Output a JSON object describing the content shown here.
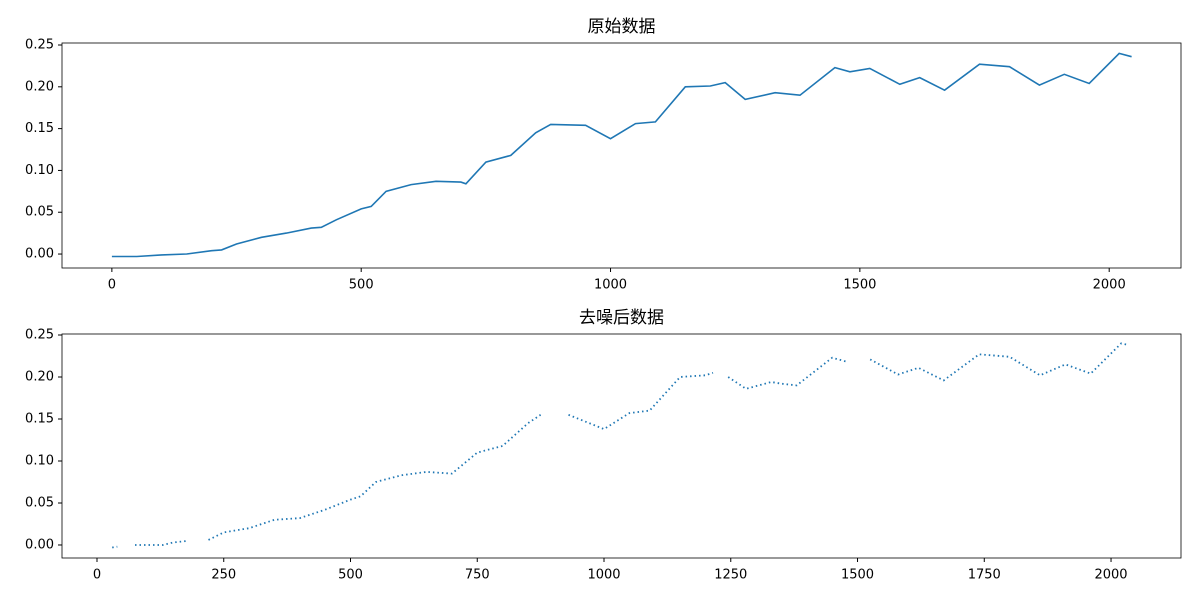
{
  "chart_data": [
    {
      "type": "line",
      "title": "原始数据",
      "color": "#1f77b4",
      "linestyle": "solid",
      "x": [
        0,
        50,
        100,
        150,
        200,
        220,
        250,
        300,
        350,
        400,
        420,
        450,
        500,
        520,
        550,
        600,
        650,
        700,
        710,
        750,
        800,
        850,
        880,
        950,
        1000,
        1050,
        1090,
        1150,
        1200,
        1230,
        1270,
        1330,
        1380,
        1450,
        1480,
        1520,
        1580,
        1620,
        1670,
        1740,
        1800,
        1860,
        1910,
        1960,
        2020,
        2045
      ],
      "values": [
        -0.003,
        -0.003,
        -0.001,
        0.0,
        0.004,
        0.005,
        0.012,
        0.02,
        0.025,
        0.031,
        0.032,
        0.041,
        0.054,
        0.057,
        0.075,
        0.083,
        0.087,
        0.086,
        0.084,
        0.11,
        0.118,
        0.145,
        0.155,
        0.154,
        0.138,
        0.156,
        0.158,
        0.2,
        0.201,
        0.205,
        0.185,
        0.193,
        0.19,
        0.223,
        0.218,
        0.222,
        0.203,
        0.211,
        0.196,
        0.227,
        0.224,
        0.202,
        0.215,
        0.204,
        0.24,
        0.236
      ],
      "xlim": [
        -100,
        2144
      ],
      "xticks": [
        0,
        500,
        1000,
        1500,
        2000
      ],
      "ylim": [
        -0.0167,
        0.2524
      ],
      "yticks": [
        {
          "value": 0,
          "label": "0.00"
        },
        {
          "value": 0.05,
          "label": "0.05"
        },
        {
          "value": 0.1,
          "label": "0.10"
        },
        {
          "value": 0.15,
          "label": "0.15"
        },
        {
          "value": 0.2,
          "label": "0.20"
        },
        {
          "value": 0.25,
          "label": "0.25"
        }
      ]
    },
    {
      "type": "line",
      "title": "去噪后数据",
      "color": "#1f77b4",
      "linestyle": "dotted",
      "x": [
        30,
        40,
        60,
        75,
        100,
        130,
        150,
        180,
        200,
        220,
        250,
        300,
        350,
        400,
        450,
        500,
        520,
        550,
        600,
        650,
        700,
        750,
        800,
        850,
        875,
        900,
        930,
        1000,
        1050,
        1090,
        1150,
        1200,
        1215,
        1230,
        1245,
        1280,
        1330,
        1350,
        1380,
        1450,
        1480,
        1500,
        1525,
        1580,
        1620,
        1670,
        1740,
        1800,
        1860,
        1910,
        1960,
        2020,
        2035
      ],
      "values": [
        -0.003,
        -0.002,
        null,
        0.0,
        0.0,
        0.0,
        0.003,
        0.005,
        null,
        0.006,
        0.015,
        0.02,
        0.03,
        0.032,
        0.042,
        0.054,
        0.058,
        0.075,
        0.083,
        0.087,
        0.085,
        0.11,
        0.118,
        0.145,
        0.155,
        null,
        0.155,
        0.138,
        0.157,
        0.16,
        0.2,
        0.202,
        0.205,
        null,
        0.2,
        0.186,
        0.194,
        0.192,
        0.19,
        0.223,
        0.218,
        null,
        0.221,
        0.203,
        0.211,
        0.196,
        0.227,
        0.224,
        0.202,
        0.215,
        0.204,
        0.24,
        0.238
      ],
      "xlim": [
        -69,
        2138
      ],
      "xticks": [
        0,
        250,
        500,
        750,
        1000,
        1250,
        1500,
        1750,
        2000
      ],
      "ylim": [
        -0.0155,
        0.2512
      ],
      "yticks": [
        {
          "value": 0,
          "label": "0.00"
        },
        {
          "value": 0.05,
          "label": "0.05"
        },
        {
          "value": 0.1,
          "label": "0.10"
        },
        {
          "value": 0.15,
          "label": "0.15"
        },
        {
          "value": 0.2,
          "label": "0.20"
        },
        {
          "value": 0.25,
          "label": "0.25"
        }
      ]
    }
  ]
}
